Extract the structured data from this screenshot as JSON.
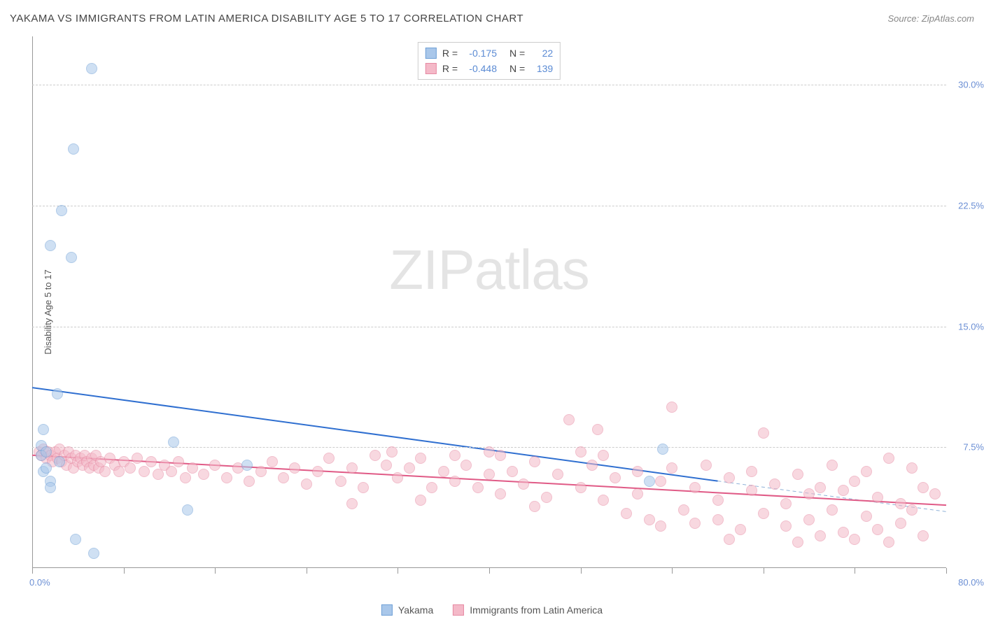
{
  "header": {
    "title": "YAKAMA VS IMMIGRANTS FROM LATIN AMERICA DISABILITY AGE 5 TO 17 CORRELATION CHART",
    "source": "Source: ZipAtlas.com"
  },
  "watermark": {
    "prefix": "ZIP",
    "suffix": "atlas"
  },
  "chart": {
    "type": "scatter",
    "ylabel": "Disability Age 5 to 17",
    "background_color": "#ffffff",
    "grid_color": "#cccccc",
    "axis_color": "#999999",
    "tick_label_color": "#6b8fd4",
    "xlim": [
      0,
      80
    ],
    "ylim": [
      0,
      33
    ],
    "x_start_label": "0.0%",
    "x_end_label": "80.0%",
    "y_ticks": [
      7.5,
      15.0,
      22.5,
      30.0
    ],
    "y_tick_labels": [
      "7.5%",
      "15.0%",
      "22.5%",
      "30.0%"
    ],
    "x_tick_positions": [
      0,
      8,
      16,
      24,
      32,
      40,
      48,
      56,
      64,
      72,
      80
    ],
    "marker_radius": 8,
    "marker_stroke_width": 1.5,
    "series": [
      {
        "name": "Yakama",
        "fill": "#a9c7ea",
        "fill_opacity": 0.55,
        "stroke": "#6fa0d6",
        "r_value": "-0.175",
        "n_value": "22",
        "trend": {
          "x1": 0,
          "y1": 11.2,
          "x2": 60,
          "y2": 5.4,
          "color": "#2f6fd0",
          "width": 2,
          "dash": ""
        },
        "trend_extrap": {
          "x1": 60,
          "y1": 5.4,
          "x2": 80,
          "y2": 3.5,
          "color": "#8fb2d8",
          "width": 1,
          "dash": "5 4"
        },
        "points": [
          [
            5.2,
            31.0
          ],
          [
            3.6,
            26.0
          ],
          [
            2.6,
            22.2
          ],
          [
            1.6,
            20.0
          ],
          [
            3.4,
            19.3
          ],
          [
            2.2,
            10.8
          ],
          [
            1.0,
            8.6
          ],
          [
            0.8,
            7.6
          ],
          [
            0.8,
            7.0
          ],
          [
            1.2,
            7.2
          ],
          [
            1.6,
            5.4
          ],
          [
            1.6,
            5.0
          ],
          [
            3.8,
            1.8
          ],
          [
            5.4,
            0.9
          ],
          [
            12.4,
            7.8
          ],
          [
            13.6,
            3.6
          ],
          [
            18.8,
            6.4
          ],
          [
            55.2,
            7.4
          ],
          [
            54.0,
            5.4
          ],
          [
            2.4,
            6.6
          ],
          [
            1.0,
            6.0
          ],
          [
            1.2,
            6.2
          ]
        ]
      },
      {
        "name": "Immigrants from Latin America",
        "fill": "#f4b9c8",
        "fill_opacity": 0.55,
        "stroke": "#e68aa3",
        "r_value": "-0.448",
        "n_value": "139",
        "trend": {
          "x1": 0,
          "y1": 7.0,
          "x2": 80,
          "y2": 3.9,
          "color": "#e05a86",
          "width": 2,
          "dash": ""
        },
        "points": [
          [
            0.6,
            7.2
          ],
          [
            0.8,
            7.0
          ],
          [
            1.0,
            7.4
          ],
          [
            1.2,
            6.8
          ],
          [
            1.4,
            7.2
          ],
          [
            1.6,
            7.0
          ],
          [
            1.8,
            6.6
          ],
          [
            2.0,
            7.2
          ],
          [
            2.2,
            6.8
          ],
          [
            2.4,
            7.4
          ],
          [
            2.6,
            6.6
          ],
          [
            2.8,
            7.0
          ],
          [
            3.0,
            6.4
          ],
          [
            3.2,
            7.2
          ],
          [
            3.4,
            6.8
          ],
          [
            3.6,
            6.2
          ],
          [
            3.8,
            7.0
          ],
          [
            4.0,
            6.6
          ],
          [
            4.2,
            6.8
          ],
          [
            4.4,
            6.4
          ],
          [
            4.6,
            7.0
          ],
          [
            4.8,
            6.6
          ],
          [
            5.0,
            6.2
          ],
          [
            5.2,
            6.8
          ],
          [
            5.4,
            6.4
          ],
          [
            5.6,
            7.0
          ],
          [
            5.8,
            6.2
          ],
          [
            6.0,
            6.6
          ],
          [
            6.4,
            6.0
          ],
          [
            6.8,
            6.8
          ],
          [
            7.2,
            6.4
          ],
          [
            7.6,
            6.0
          ],
          [
            8.0,
            6.6
          ],
          [
            8.6,
            6.2
          ],
          [
            9.2,
            6.8
          ],
          [
            9.8,
            6.0
          ],
          [
            10.4,
            6.6
          ],
          [
            11.0,
            5.8
          ],
          [
            11.6,
            6.4
          ],
          [
            12.2,
            6.0
          ],
          [
            12.8,
            6.6
          ],
          [
            13.4,
            5.6
          ],
          [
            14.0,
            6.2
          ],
          [
            15.0,
            5.8
          ],
          [
            16.0,
            6.4
          ],
          [
            17.0,
            5.6
          ],
          [
            18.0,
            6.2
          ],
          [
            19.0,
            5.4
          ],
          [
            20.0,
            6.0
          ],
          [
            21.0,
            6.6
          ],
          [
            22.0,
            5.6
          ],
          [
            23.0,
            6.2
          ],
          [
            24.0,
            5.2
          ],
          [
            25.0,
            6.0
          ],
          [
            26.0,
            6.8
          ],
          [
            27.0,
            5.4
          ],
          [
            28.0,
            6.2
          ],
          [
            29.0,
            5.0
          ],
          [
            30.0,
            7.0
          ],
          [
            31.0,
            6.4
          ],
          [
            31.5,
            7.2
          ],
          [
            32.0,
            5.6
          ],
          [
            33.0,
            6.2
          ],
          [
            34.0,
            6.8
          ],
          [
            35.0,
            5.0
          ],
          [
            36.0,
            6.0
          ],
          [
            37.0,
            5.4
          ],
          [
            38.0,
            6.4
          ],
          [
            39.0,
            5.0
          ],
          [
            40.0,
            5.8
          ],
          [
            40.0,
            7.2
          ],
          [
            41.0,
            4.6
          ],
          [
            42.0,
            6.0
          ],
          [
            43.0,
            5.2
          ],
          [
            44.0,
            6.6
          ],
          [
            45.0,
            4.4
          ],
          [
            46.0,
            5.8
          ],
          [
            47.0,
            9.2
          ],
          [
            48.0,
            5.0
          ],
          [
            49.0,
            6.4
          ],
          [
            49.5,
            8.6
          ],
          [
            50.0,
            4.2
          ],
          [
            51.0,
            5.6
          ],
          [
            52.0,
            3.4
          ],
          [
            53.0,
            6.0
          ],
          [
            53.0,
            4.6
          ],
          [
            54.0,
            3.0
          ],
          [
            55.0,
            5.4
          ],
          [
            56.0,
            6.2
          ],
          [
            56.0,
            10.0
          ],
          [
            57.0,
            3.6
          ],
          [
            58.0,
            5.0
          ],
          [
            58.0,
            2.8
          ],
          [
            59.0,
            6.4
          ],
          [
            60.0,
            4.2
          ],
          [
            60.0,
            3.0
          ],
          [
            61.0,
            5.6
          ],
          [
            62.0,
            2.4
          ],
          [
            63.0,
            4.8
          ],
          [
            63.0,
            6.0
          ],
          [
            64.0,
            3.4
          ],
          [
            64.0,
            8.4
          ],
          [
            65.0,
            5.2
          ],
          [
            66.0,
            2.6
          ],
          [
            66.0,
            4.0
          ],
          [
            67.0,
            5.8
          ],
          [
            68.0,
            3.0
          ],
          [
            68.0,
            4.6
          ],
          [
            69.0,
            2.0
          ],
          [
            69.0,
            5.0
          ],
          [
            70.0,
            6.4
          ],
          [
            70.0,
            3.6
          ],
          [
            71.0,
            2.2
          ],
          [
            71.0,
            4.8
          ],
          [
            72.0,
            5.4
          ],
          [
            72.0,
            1.8
          ],
          [
            73.0,
            6.0
          ],
          [
            73.0,
            3.2
          ],
          [
            74.0,
            2.4
          ],
          [
            74.0,
            4.4
          ],
          [
            75.0,
            6.8
          ],
          [
            75.0,
            1.6
          ],
          [
            76.0,
            4.0
          ],
          [
            76.0,
            2.8
          ],
          [
            77.0,
            6.2
          ],
          [
            77.0,
            3.6
          ],
          [
            78.0,
            5.0
          ],
          [
            78.0,
            2.0
          ],
          [
            79.0,
            4.6
          ],
          [
            41.0,
            7.0
          ],
          [
            48.0,
            7.2
          ],
          [
            55.0,
            2.6
          ],
          [
            61.0,
            1.8
          ],
          [
            67.0,
            1.6
          ],
          [
            44.0,
            3.8
          ],
          [
            50.0,
            7.0
          ],
          [
            34.0,
            4.2
          ],
          [
            37.0,
            7.0
          ],
          [
            28.0,
            4.0
          ]
        ]
      }
    ]
  },
  "stats_legend": {
    "r_label": "R =",
    "n_label": "N ="
  },
  "bottom_legend": {
    "items": [
      "Yakama",
      "Immigrants from Latin America"
    ]
  }
}
